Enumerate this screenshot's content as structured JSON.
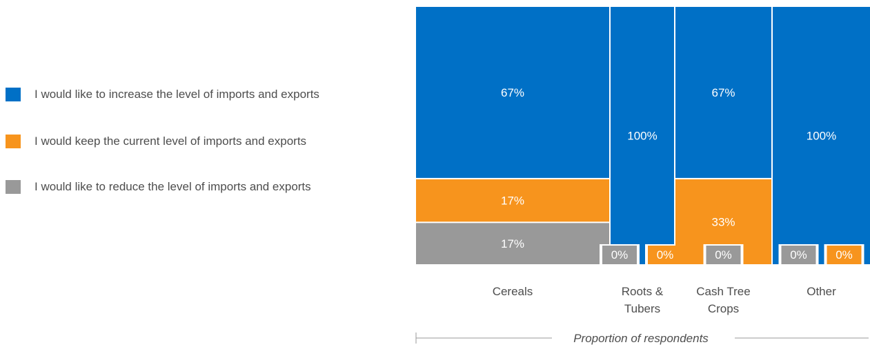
{
  "chart_data": {
    "type": "bar",
    "layout": "variable-width stacked (marimekko)",
    "xlabel": "Proportion of respondents",
    "categories": [
      "Cereals",
      "Roots & Tubers",
      "Cash Tree Crops",
      "Other"
    ],
    "category_widths": [
      6,
      2,
      3,
      3
    ],
    "series": [
      {
        "name": "I would like to increase the level of imports and exports",
        "color": "#0070c6",
        "values": [
          67,
          100,
          67,
          100
        ],
        "labels": [
          "67%",
          "100%",
          "67%",
          "100%"
        ]
      },
      {
        "name": "I would keep the current level of imports and exports",
        "color": "#f7941d",
        "values": [
          17,
          0,
          33,
          0
        ],
        "labels": [
          "17%",
          "0%",
          "33%",
          "0%"
        ]
      },
      {
        "name": "I would like to reduce the level of imports and exports",
        "color": "#999999",
        "values": [
          17,
          0,
          0,
          0
        ],
        "labels": [
          "17%",
          "0%",
          "0%",
          "0%"
        ]
      }
    ],
    "ylim": [
      0,
      100
    ],
    "legend_position": "left"
  },
  "colors": {
    "text": "#4d4d4d",
    "axis": "#999999",
    "label_on_bar": "#ffffff"
  }
}
